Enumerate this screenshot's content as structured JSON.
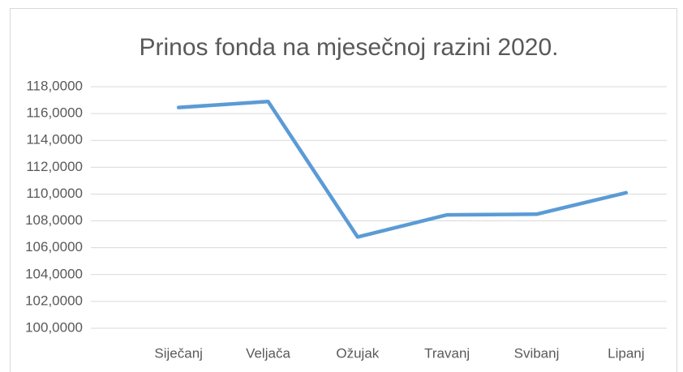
{
  "chart_data": {
    "type": "line",
    "title": "Prinos fonda na mjesečnoj razini 2020.",
    "categories": [
      "Siječanj",
      "Veljača",
      "Ožujak",
      "Travanj",
      "Svibanj",
      "Lipanj"
    ],
    "series": [
      {
        "name": "Prinos",
        "color": "#5b9bd5",
        "values": [
          116.45,
          116.9,
          106.8,
          108.45,
          108.5,
          110.1
        ]
      }
    ],
    "ylim": [
      100,
      118
    ],
    "yticks": [
      {
        "value": 100,
        "label": "100,0000"
      },
      {
        "value": 102,
        "label": "102,0000"
      },
      {
        "value": 104,
        "label": "104,0000"
      },
      {
        "value": 106,
        "label": "106,0000"
      },
      {
        "value": 108,
        "label": "108,0000"
      },
      {
        "value": 110,
        "label": "110,0000"
      },
      {
        "value": 112,
        "label": "112,0000"
      },
      {
        "value": 114,
        "label": "114,0000"
      },
      {
        "value": 116,
        "label": "116,0000"
      },
      {
        "value": 118,
        "label": "118,0000"
      }
    ],
    "grid": true
  }
}
